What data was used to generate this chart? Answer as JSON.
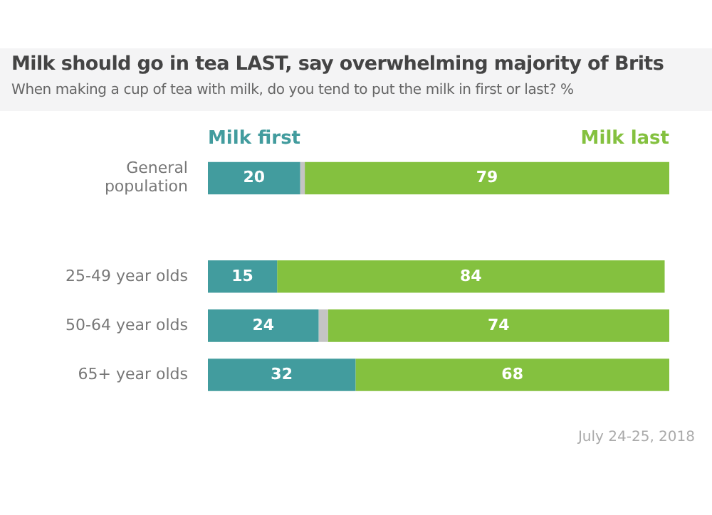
{
  "chart_data": {
    "type": "bar",
    "orientation": "horizontal",
    "stacked": true,
    "title": "Milk should go in tea LAST, say overwhelming majority of Brits",
    "subtitle": "When making a cup of tea with milk, do you tend to put the milk in first or last? %",
    "categories": [
      "General population",
      null,
      "25-49 year olds",
      "50-64 year olds",
      "65+ year olds"
    ],
    "series": [
      {
        "name": "Milk first",
        "color": "#429c9e",
        "values": [
          20,
          null,
          15,
          24,
          32
        ],
        "value_labels": [
          "20",
          null,
          "15",
          "24",
          "32"
        ]
      },
      {
        "color": "#c4c4c4",
        "values": [
          1,
          null,
          0,
          2,
          0
        ]
      },
      {
        "name": "Milk last",
        "color": "#84c13f",
        "values": [
          79,
          null,
          84,
          74,
          68
        ],
        "value_labels": [
          "79",
          null,
          "84",
          "74",
          "68"
        ]
      }
    ],
    "xlim": [
      0,
      100
    ],
    "tick_labels": "y",
    "grid": false,
    "legend": false,
    "annotations": [
      "July 24-25, 2018"
    ]
  }
}
